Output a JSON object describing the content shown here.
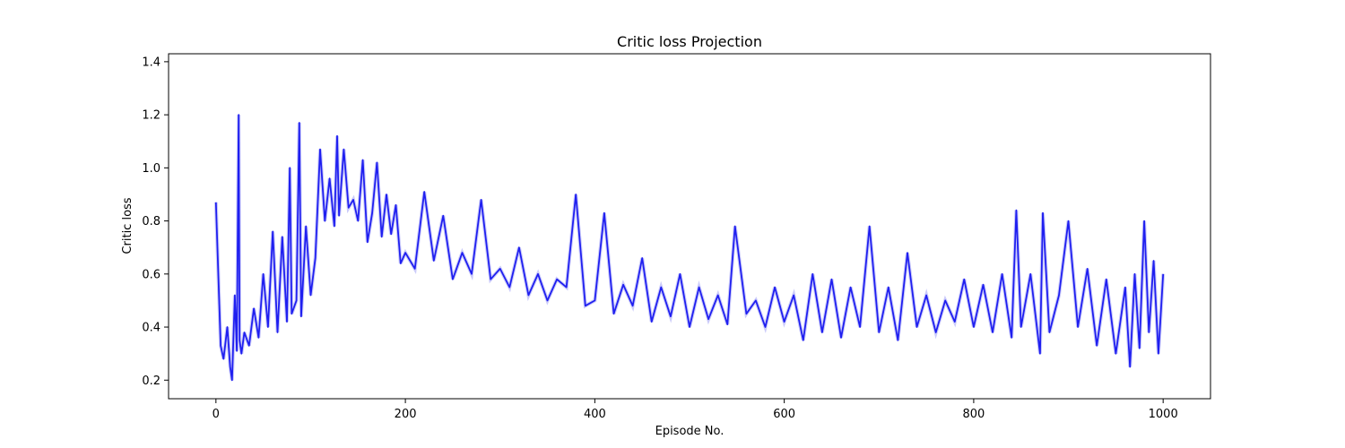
{
  "chart_data": {
    "type": "line",
    "title": "Critic loss Projection",
    "xlabel": "Episode No.",
    "ylabel": "Critic loss",
    "xlim": [
      -50,
      1050
    ],
    "ylim": [
      0.13,
      1.43
    ],
    "x_ticks": [
      0,
      200,
      400,
      600,
      800,
      1000
    ],
    "x_tick_labels": [
      "0",
      "200",
      "400",
      "600",
      "800",
      "1000"
    ],
    "y_ticks": [
      0.2,
      0.4,
      0.6,
      0.8,
      1.0,
      1.2,
      1.4
    ],
    "y_tick_labels": [
      "0.2",
      "0.4",
      "0.6",
      "0.8",
      "1.0",
      "1.2",
      "1.4"
    ],
    "grid": false,
    "colors": {
      "line": "#1f1ff0",
      "band": "#6a6af0"
    },
    "series": [
      {
        "x": [
          0,
          5,
          8,
          12,
          15,
          17,
          20,
          22,
          24,
          25,
          27,
          30,
          35,
          40,
          45,
          50,
          55,
          60,
          65,
          70,
          75,
          78,
          80,
          85,
          88,
          90,
          95,
          100,
          105,
          110,
          115,
          120,
          125,
          128,
          130,
          135,
          140,
          145,
          150,
          155,
          160,
          165,
          170,
          175,
          180,
          185,
          190,
          195,
          200,
          210,
          220,
          230,
          240,
          250,
          260,
          270,
          280,
          290,
          300,
          310,
          320,
          330,
          340,
          350,
          360,
          370,
          380,
          390,
          400,
          410,
          420,
          430,
          440,
          450,
          460,
          470,
          480,
          490,
          500,
          510,
          520,
          530,
          540,
          548,
          560,
          570,
          580,
          590,
          600,
          610,
          620,
          630,
          640,
          650,
          660,
          670,
          680,
          690,
          700,
          710,
          720,
          730,
          740,
          750,
          760,
          770,
          780,
          790,
          800,
          810,
          820,
          830,
          840,
          845,
          850,
          860,
          870,
          873,
          880,
          890,
          900,
          910,
          920,
          930,
          940,
          950,
          960,
          965,
          970,
          975,
          980,
          985,
          990,
          995,
          1000
        ],
        "values": [
          0.87,
          0.33,
          0.28,
          0.4,
          0.25,
          0.2,
          0.52,
          0.31,
          1.2,
          0.35,
          0.3,
          0.38,
          0.33,
          0.47,
          0.36,
          0.6,
          0.4,
          0.76,
          0.38,
          0.74,
          0.42,
          1.0,
          0.45,
          0.5,
          1.17,
          0.44,
          0.78,
          0.52,
          0.66,
          1.07,
          0.8,
          0.96,
          0.78,
          1.12,
          0.82,
          1.07,
          0.85,
          0.88,
          0.8,
          1.03,
          0.72,
          0.83,
          1.02,
          0.74,
          0.9,
          0.75,
          0.86,
          0.64,
          0.68,
          0.62,
          0.91,
          0.65,
          0.82,
          0.58,
          0.68,
          0.6,
          0.88,
          0.58,
          0.62,
          0.55,
          0.7,
          0.52,
          0.6,
          0.5,
          0.58,
          0.55,
          0.9,
          0.48,
          0.5,
          0.83,
          0.45,
          0.56,
          0.48,
          0.66,
          0.42,
          0.55,
          0.44,
          0.6,
          0.4,
          0.55,
          0.43,
          0.52,
          0.41,
          0.78,
          0.45,
          0.5,
          0.4,
          0.55,
          0.42,
          0.52,
          0.35,
          0.6,
          0.38,
          0.58,
          0.36,
          0.55,
          0.4,
          0.78,
          0.38,
          0.55,
          0.35,
          0.68,
          0.4,
          0.52,
          0.38,
          0.5,
          0.42,
          0.58,
          0.4,
          0.56,
          0.38,
          0.6,
          0.36,
          0.84,
          0.4,
          0.6,
          0.3,
          0.83,
          0.38,
          0.52,
          0.8,
          0.4,
          0.62,
          0.33,
          0.58,
          0.3,
          0.55,
          0.25,
          0.6,
          0.32,
          0.8,
          0.38,
          0.65,
          0.3,
          0.6
        ]
      }
    ]
  }
}
